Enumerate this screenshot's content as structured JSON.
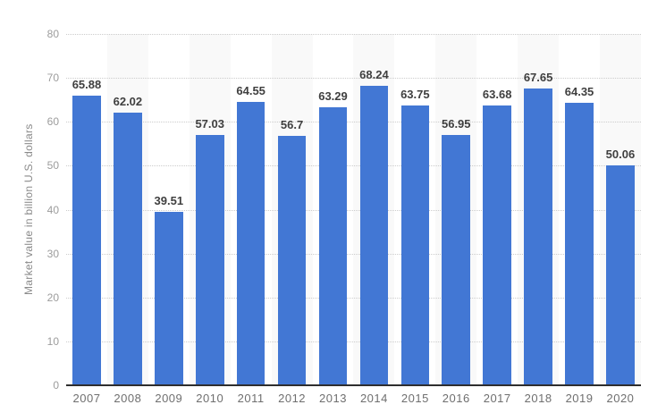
{
  "chart_data": {
    "type": "bar",
    "title": "",
    "categories": [
      "2007",
      "2008",
      "2009",
      "2010",
      "2011",
      "2012",
      "2013",
      "2014",
      "2015",
      "2016",
      "2017",
      "2018",
      "2019",
      "2020"
    ],
    "values": [
      65.88,
      62.02,
      39.51,
      57.03,
      64.55,
      56.7,
      63.29,
      68.24,
      63.75,
      56.95,
      63.68,
      67.65,
      64.35,
      50.06
    ],
    "bar_labels": [
      "65.88",
      "62.02",
      "39.51",
      "57.03",
      "64.55",
      "56.7",
      "63.29",
      "68.24",
      "63.75",
      "56.95",
      "63.68",
      "67.65",
      "64.35",
      "50.06"
    ],
    "xlabel": "",
    "ylabel": "Market value in billion U.S. dollars",
    "ylim": [
      0,
      80
    ],
    "yticks": [
      0,
      10,
      20,
      30,
      40,
      50,
      60,
      70,
      80
    ],
    "grid": "horizontal-dotted",
    "legend_position": "none",
    "plot_bands": "alternating vertical bands behind every second category",
    "colors": {
      "bar": "#4277d4",
      "band": "#f9f9f9",
      "gridline": "#cccccc",
      "axis_line": "#2e2e2e",
      "y_tick_label": "#9c9c9c",
      "x_category_label": "#6f6f6f",
      "value_label": "#3f3f3f",
      "y_axis_title": "#8a8a8a",
      "background": "#ffffff"
    }
  }
}
